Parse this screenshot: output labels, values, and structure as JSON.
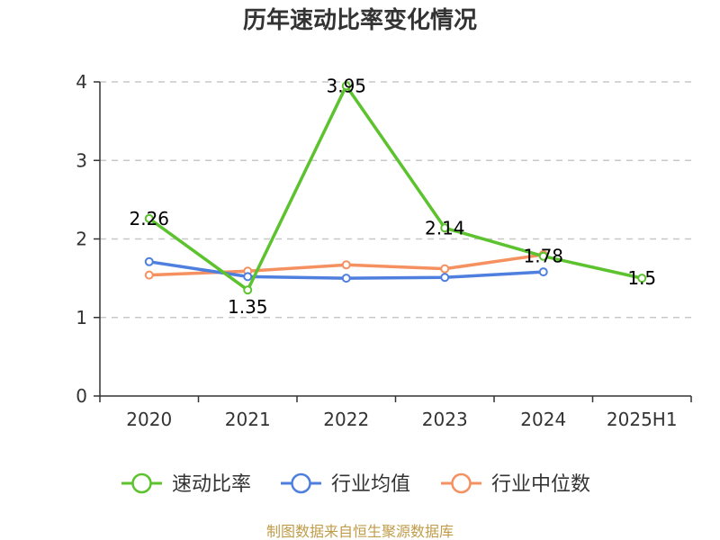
{
  "source_note": "制图数据来自恒生聚源数据库",
  "chart_data": {
    "type": "line",
    "title": "历年速动比率变化情况",
    "xlabel": "",
    "ylabel": "",
    "categories": [
      "2020",
      "2021",
      "2022",
      "2023",
      "2024",
      "2025H1"
    ],
    "ylim": [
      0,
      4
    ],
    "yticks": [
      "0",
      "1",
      "2",
      "3",
      "4"
    ],
    "grid": "horizontal-dashed",
    "legend_position": "bottom",
    "series": [
      {
        "name": "速动比率",
        "color": "#5cc22e",
        "values": [
          2.26,
          1.35,
          3.95,
          2.14,
          1.78,
          1.5
        ],
        "labels": [
          "2.26",
          "1.35",
          "3.95",
          "2.14",
          "1.78",
          "1.5"
        ]
      },
      {
        "name": "行业均值",
        "color": "#4f7fde",
        "values": [
          1.71,
          1.52,
          1.5,
          1.51,
          1.58,
          null
        ]
      },
      {
        "name": "行业中位数",
        "color": "#f59160",
        "values": [
          1.54,
          1.59,
          1.67,
          1.62,
          1.8,
          null
        ]
      }
    ]
  }
}
